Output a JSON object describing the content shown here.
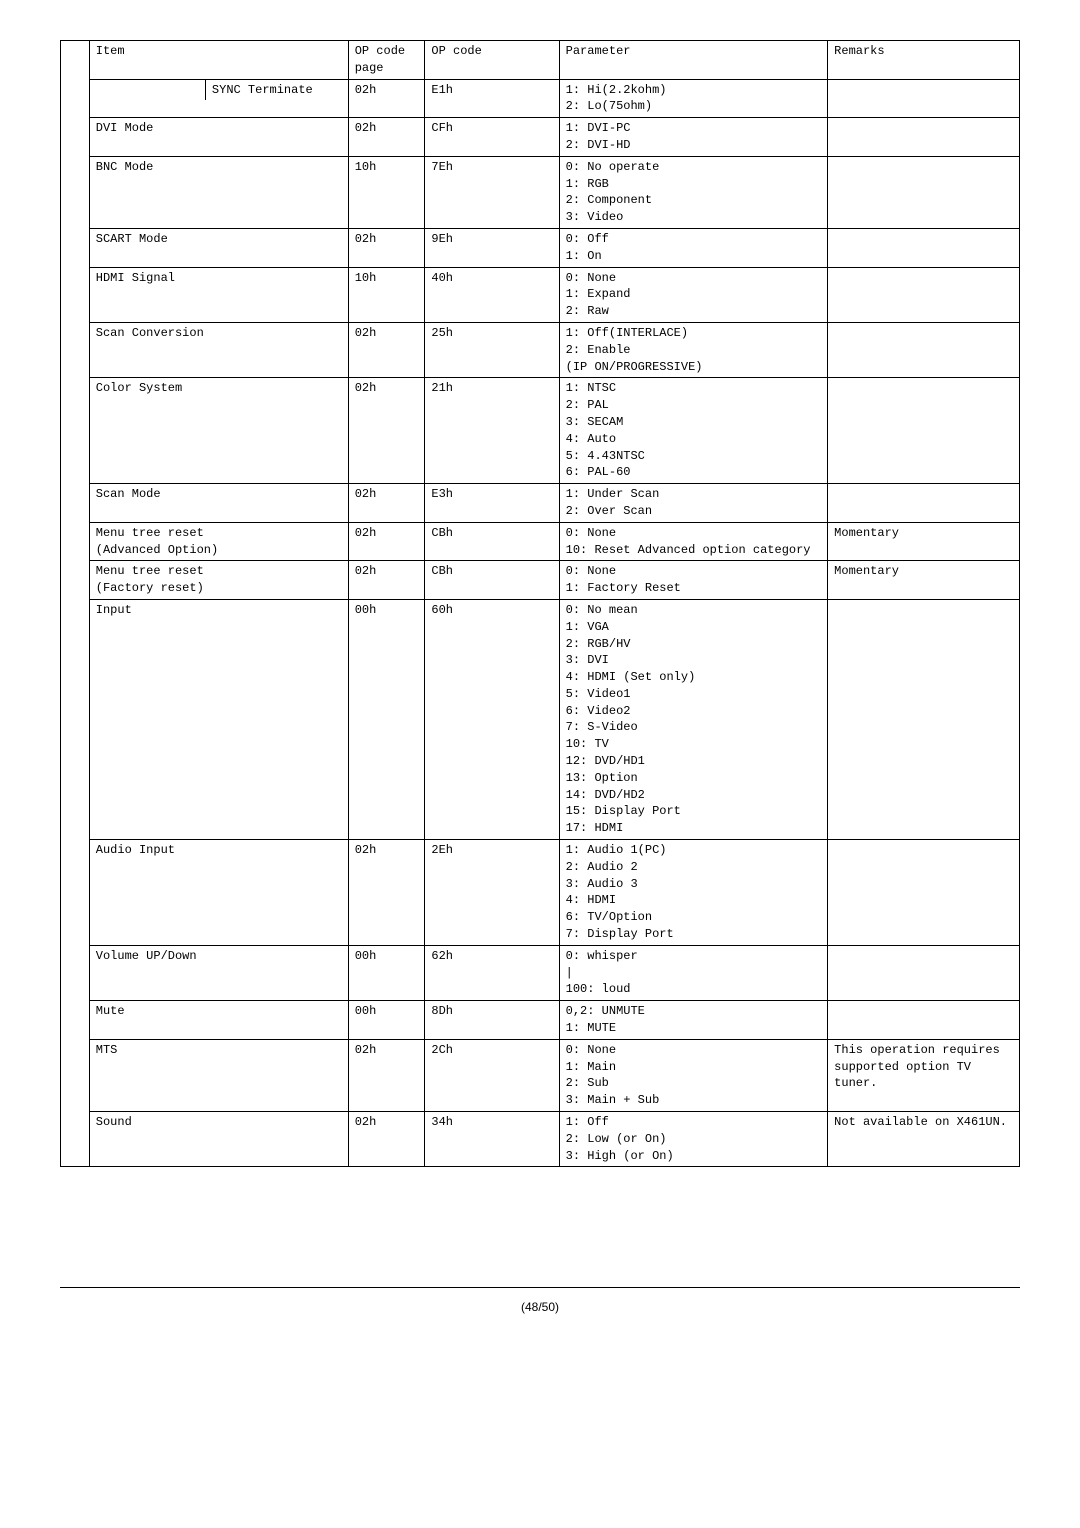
{
  "headers": {
    "item": "Item",
    "op": "OP code page",
    "opcode": "OP code",
    "param": "Parameter",
    "remarks": "Remarks"
  },
  "rows": [
    {
      "item": "",
      "subitem": "SYNC Terminate",
      "op": "02h",
      "opcode": "E1h",
      "param": "1: Hi(2.2kohm)\n2: Lo(75ohm)",
      "remarks": ""
    },
    {
      "item": "DVI Mode",
      "op": "02h",
      "opcode": "CFh",
      "param": "1: DVI-PC\n2: DVI-HD",
      "remarks": ""
    },
    {
      "item": "BNC Mode",
      "op": "10h",
      "opcode": "7Eh",
      "param": "0: No operate\n1: RGB\n2: Component\n3: Video",
      "remarks": ""
    },
    {
      "item": "SCART Mode",
      "op": "02h",
      "opcode": "9Eh",
      "param": "0: Off\n1: On",
      "remarks": ""
    },
    {
      "item": "HDMI Signal",
      "op": "10h",
      "opcode": "40h",
      "param": "0: None\n1: Expand\n2: Raw",
      "remarks": ""
    },
    {
      "item": "Scan Conversion",
      "op": "02h",
      "opcode": "25h",
      "param": "1: Off(INTERLACE)\n2: Enable\n(IP ON/PROGRESSIVE)",
      "remarks": ""
    },
    {
      "item": "Color System",
      "op": "02h",
      "opcode": "21h",
      "param": "1: NTSC\n2: PAL\n3: SECAM\n4: Auto\n5: 4.43NTSC\n6: PAL-60",
      "remarks": ""
    },
    {
      "item": "Scan Mode",
      "op": "02h",
      "opcode": "E3h",
      "param": "1: Under Scan\n2: Over Scan",
      "remarks": ""
    },
    {
      "item": "Menu tree reset\n(Advanced Option)",
      "op": "02h",
      "opcode": "CBh",
      "param": "0: None\n10: Reset Advanced option category",
      "remarks": "Momentary"
    },
    {
      "item": "Menu tree reset\n(Factory reset)",
      "op": "02h",
      "opcode": "CBh",
      "param": "0: None\n1: Factory Reset",
      "remarks": "Momentary"
    },
    {
      "item": "Input",
      "op": "00h",
      "opcode": "60h",
      "param": "0: No mean\n1: VGA\n2: RGB/HV\n3: DVI\n4: HDMI (Set only)\n5: Video1\n6: Video2\n7: S-Video\n10: TV\n12: DVD/HD1\n13: Option\n14: DVD/HD2\n15: Display Port\n17: HDMI",
      "remarks": ""
    },
    {
      "item": "Audio Input",
      "op": "02h",
      "opcode": "2Eh",
      "param": "1: Audio 1(PC)\n2: Audio 2\n3: Audio 3\n4: HDMI\n6: TV/Option\n7: Display Port",
      "remarks": ""
    },
    {
      "item": "Volume UP/Down",
      "op": "00h",
      "opcode": "62h",
      "param": "0: whisper\n|\n100: loud",
      "remarks": ""
    },
    {
      "item": "Mute",
      "op": "00h",
      "opcode": "8Dh",
      "param": "0,2: UNMUTE\n1: MUTE",
      "remarks": ""
    },
    {
      "item": "MTS",
      "op": "02h",
      "opcode": "2Ch",
      "param": "0: None\n1: Main\n2: Sub\n3: Main + Sub",
      "remarks": "This operation requires supported option   TV tuner."
    },
    {
      "item": "Sound",
      "op": "02h",
      "opcode": "34h",
      "param": "1: Off\n2: Low (or On)\n3: High (or On)",
      "remarks": "Not available on X461UN."
    }
  ],
  "footer": "(48/50)"
}
